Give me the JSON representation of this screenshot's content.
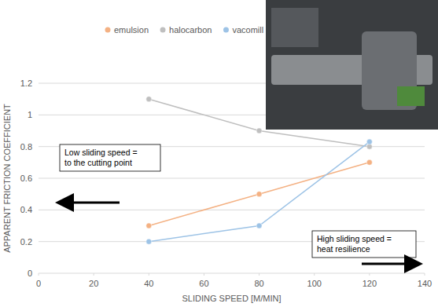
{
  "chart_data": {
    "type": "line",
    "x_label": "SLIDING SPEED [M/MIN]",
    "y_label": "APPARENT FRICTION COEFFICIENT",
    "x": [
      40,
      80,
      120
    ],
    "series": [
      {
        "name": "emulsion",
        "color": "#f4b183",
        "marker": "circle",
        "values": [
          0.3,
          0.5,
          0.7
        ]
      },
      {
        "name": "halocarbon",
        "color": "#bfbfbf",
        "marker": "circle",
        "values": [
          1.1,
          0.9,
          0.8
        ]
      },
      {
        "name": "vacomill",
        "color": "#9dc3e6",
        "marker": "circle",
        "values": [
          0.2,
          0.3,
          0.83
        ]
      }
    ],
    "xlim": [
      0,
      140
    ],
    "xticks": [
      0,
      20,
      40,
      60,
      80,
      100,
      120,
      140
    ],
    "ylim": [
      0,
      1.2
    ],
    "yticks": [
      0,
      0.2,
      0.4,
      0.6,
      0.8,
      1,
      1.2
    ],
    "grid": true,
    "legend": "top",
    "annotations": [
      {
        "lines": [
          "Low sliding speed =",
          "to the cutting point"
        ]
      },
      {
        "lines": [
          "High sliding speed =",
          "heat resilience"
        ]
      }
    ]
  }
}
